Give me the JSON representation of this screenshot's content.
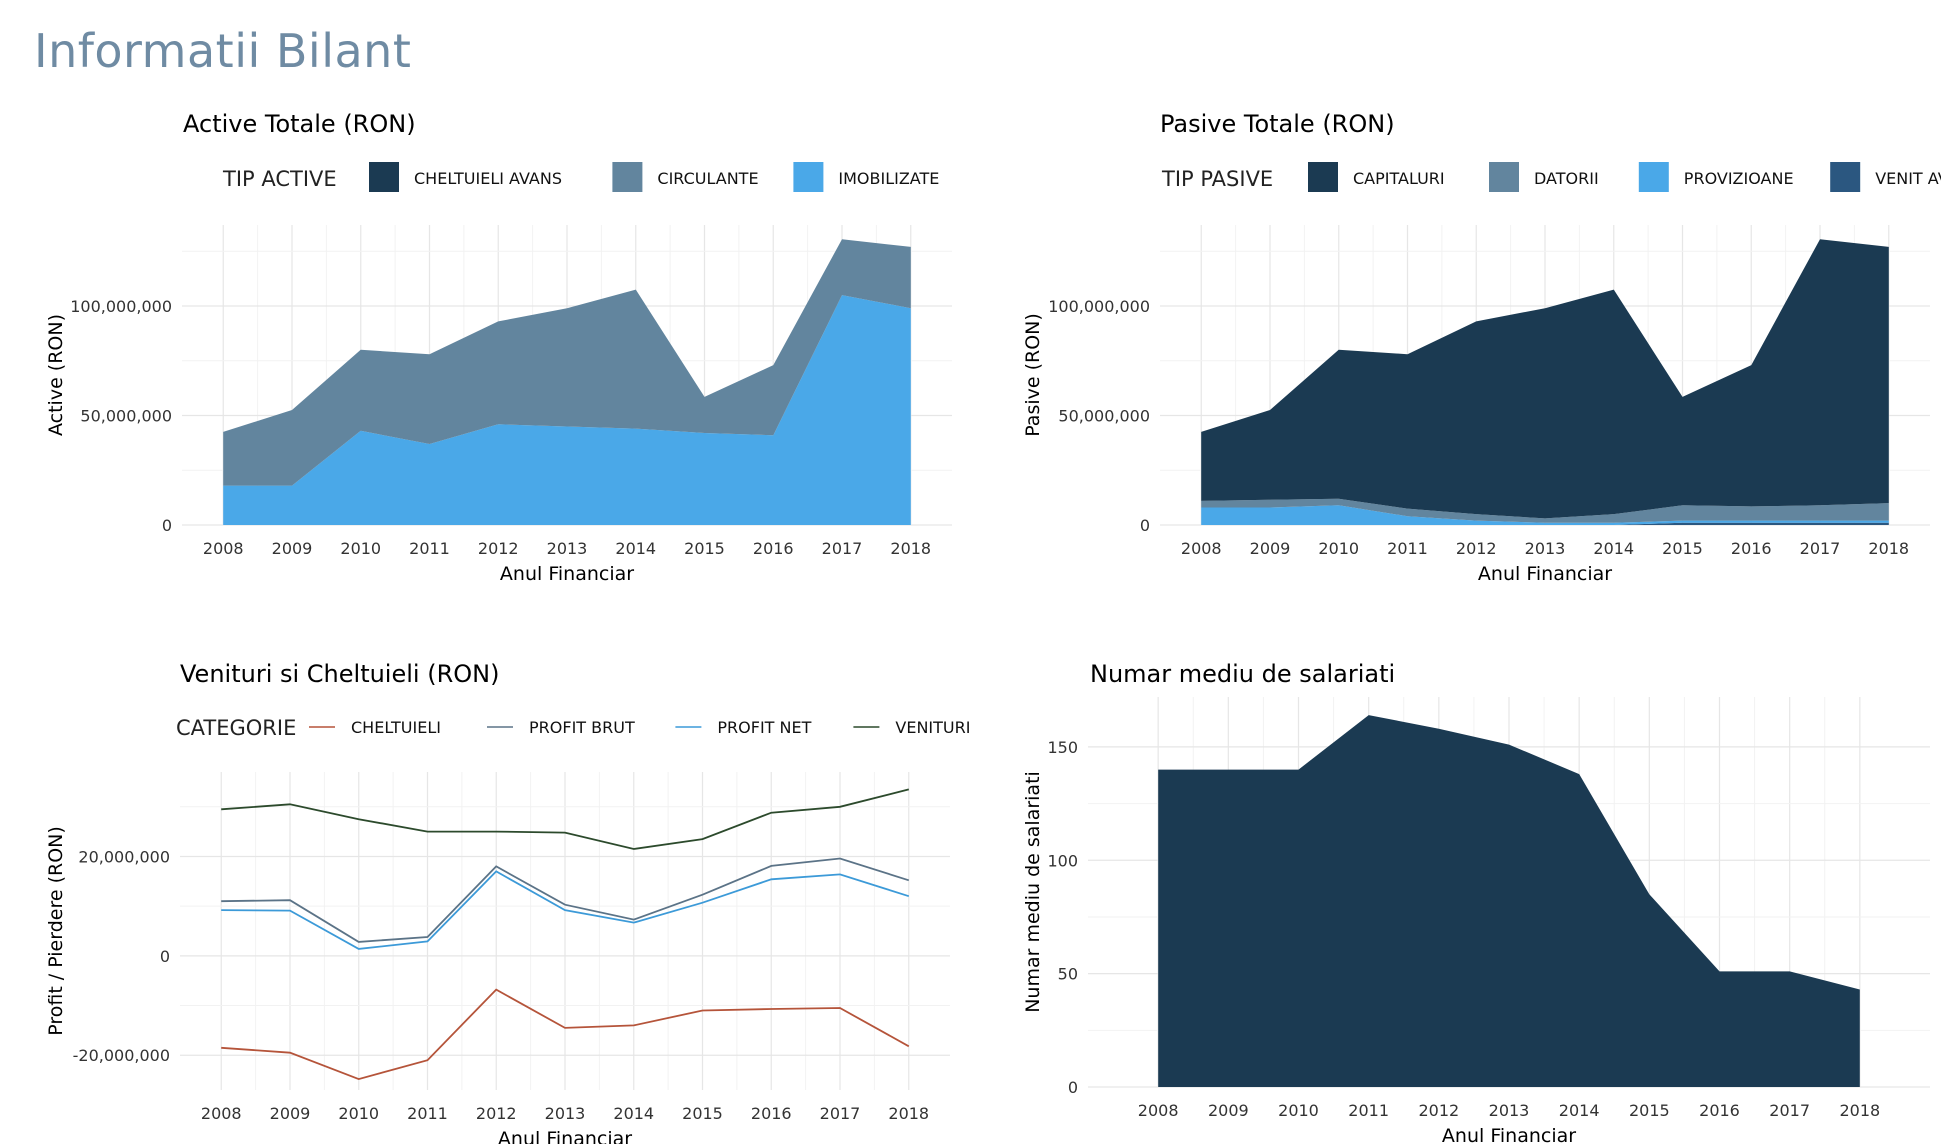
{
  "page": {
    "title": "Informatii Bilant"
  },
  "chart_data": [
    {
      "id": "active",
      "type": "area",
      "stacked": true,
      "title": "Active Totale (RON)",
      "legend_title": "TIP ACTIVE",
      "legend_position": "top",
      "xlabel": "Anul Financiar",
      "ylabel": "Active (RON)",
      "x": [
        2008,
        2009,
        2010,
        2011,
        2012,
        2013,
        2014,
        2015,
        2016,
        2017,
        2018
      ],
      "xlim": [
        2007.4,
        2018.6
      ],
      "ylim": [
        0,
        137000000
      ],
      "y_ticks": [
        {
          "value": 0,
          "label": "0"
        },
        {
          "value": 50000000,
          "label": "50,000,000"
        },
        {
          "value": 100000000,
          "label": "100,000,000"
        }
      ],
      "grid": true,
      "series": [
        {
          "name": "IMOBILIZATE",
          "color": "#4aa8e8",
          "values": [
            18000000,
            18000000,
            43000000,
            37000000,
            46000000,
            45000000,
            44000000,
            42000000,
            41000000,
            105000000,
            99000000
          ]
        },
        {
          "name": "CIRCULANTE",
          "color": "#62859e",
          "values": [
            24500000,
            34500000,
            37000000,
            41000000,
            47000000,
            54000000,
            63500000,
            16500000,
            32000000,
            25500000,
            28000000
          ]
        },
        {
          "name": "CHELTUIELI AVANS",
          "color": "#1b3a52",
          "values": [
            0,
            0,
            0,
            0,
            0,
            0,
            0,
            0,
            0,
            0,
            0
          ]
        }
      ],
      "legend_order": [
        "CHELTUIELI AVANS",
        "CIRCULANTE",
        "IMOBILIZATE"
      ]
    },
    {
      "id": "pasive",
      "type": "area",
      "stacked": true,
      "title": "Pasive Totale (RON)",
      "legend_title": "TIP PASIVE",
      "legend_position": "top",
      "xlabel": "Anul Financiar",
      "ylabel": "Pasive (RON)",
      "x": [
        2008,
        2009,
        2010,
        2011,
        2012,
        2013,
        2014,
        2015,
        2016,
        2017,
        2018
      ],
      "xlim": [
        2007.4,
        2018.6
      ],
      "ylim": [
        0,
        137000000
      ],
      "y_ticks": [
        {
          "value": 0,
          "label": "0"
        },
        {
          "value": 50000000,
          "label": "50,000,000"
        },
        {
          "value": 100000000,
          "label": "100,000,000"
        }
      ],
      "grid": true,
      "series": [
        {
          "name": "VENIT AVANS",
          "color": "#2b5780",
          "values": [
            0,
            0,
            0,
            0,
            0,
            0,
            0,
            1000000,
            1000000,
            1000000,
            1000000
          ]
        },
        {
          "name": "PROVIZIOANE",
          "color": "#4aa8e8",
          "values": [
            8000000,
            8000000,
            9000000,
            4000000,
            2000000,
            1000000,
            1000000,
            1000000,
            1000000,
            1000000,
            1000000
          ]
        },
        {
          "name": "DATORII",
          "color": "#62859e",
          "values": [
            3000000,
            3500000,
            3000000,
            3500000,
            3000000,
            2000000,
            4000000,
            7000000,
            6500000,
            7000000,
            8000000
          ]
        },
        {
          "name": "CAPITALURI",
          "color": "#1b3a52",
          "values": [
            31500000,
            41000000,
            68000000,
            70500000,
            88000000,
            96000000,
            102500000,
            49500000,
            64500000,
            121500000,
            117000000
          ]
        }
      ],
      "legend_order": [
        "CAPITALURI",
        "DATORII",
        "PROVIZIOANE",
        "VENIT AVANS"
      ]
    },
    {
      "id": "venituri",
      "type": "line",
      "title": "Venituri si Cheltuieli (RON)",
      "legend_title": "CATEGORIE",
      "legend_position": "top",
      "xlabel": "Anul Financiar",
      "ylabel": "Profit / Pierdere (RON)",
      "x": [
        2008,
        2009,
        2010,
        2011,
        2012,
        2013,
        2014,
        2015,
        2016,
        2017,
        2018
      ],
      "xlim": [
        2007.4,
        2018.6
      ],
      "ylim": [
        -27000000,
        37000000
      ],
      "y_ticks": [
        {
          "value": -20000000,
          "label": "-20,000,000"
        },
        {
          "value": 0,
          "label": "0"
        },
        {
          "value": 20000000,
          "label": "20,000,000"
        }
      ],
      "grid": true,
      "series": [
        {
          "name": "CHELTUIELI",
          "color": "#b5543a",
          "values": [
            -18500000,
            -19500000,
            -24800000,
            -21000000,
            -6800000,
            -14500000,
            -14000000,
            -11000000,
            -10700000,
            -10500000,
            -18200000
          ]
        },
        {
          "name": "PROFIT BRUT",
          "color": "#5b7387",
          "values": [
            11000000,
            11200000,
            2800000,
            3800000,
            18000000,
            10300000,
            7300000,
            12300000,
            18100000,
            19600000,
            15200000
          ]
        },
        {
          "name": "PROFIT NET",
          "color": "#3c9ad8",
          "values": [
            9200000,
            9100000,
            1400000,
            2900000,
            17000000,
            9200000,
            6700000,
            10700000,
            15400000,
            16400000,
            12000000
          ]
        },
        {
          "name": "VENITURI",
          "color": "#2c4a2c",
          "values": [
            29500000,
            30500000,
            27500000,
            25000000,
            25000000,
            24800000,
            21500000,
            23500000,
            28800000,
            30000000,
            33500000
          ]
        }
      ],
      "legend_order": [
        "CHELTUIELI",
        "PROFIT BRUT",
        "PROFIT NET",
        "VENITURI"
      ]
    },
    {
      "id": "salariati",
      "type": "area",
      "title": "Numar mediu de salariati",
      "xlabel": "Anul Financiar",
      "ylabel": "Numar mediu de salariati",
      "x": [
        2008,
        2009,
        2010,
        2011,
        2012,
        2013,
        2014,
        2015,
        2016,
        2017,
        2018
      ],
      "xlim": [
        2007.0,
        2019.0
      ],
      "ylim": [
        0,
        172
      ],
      "y_ticks": [
        {
          "value": 0,
          "label": "0"
        },
        {
          "value": 50,
          "label": "50"
        },
        {
          "value": 100,
          "label": "100"
        },
        {
          "value": 150,
          "label": "150"
        }
      ],
      "grid": true,
      "series": [
        {
          "name": "",
          "color": "#1b3a52",
          "values": [
            140,
            140,
            140,
            164,
            158,
            151,
            138,
            85,
            51,
            51,
            43
          ]
        }
      ]
    }
  ]
}
